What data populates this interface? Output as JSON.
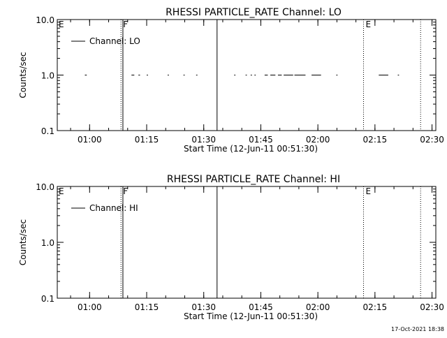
{
  "footer": {
    "timestamp": "17-Oct-2021 18:38"
  },
  "chart_data": [
    {
      "type": "line",
      "title": "RHESSI PARTICLE_RATE Channel: LO",
      "xlabel": "Start Time (12-Jun-11 00:51:30)",
      "ylabel": "Counts/sec",
      "xscale": "time",
      "xlim": [
        "00:51:30",
        "02:31:00"
      ],
      "yscale": "log",
      "ylim": [
        0.1,
        10.0
      ],
      "y_ticks": [
        "0.1",
        "1.0",
        "10.0"
      ],
      "x_ticks": [
        {
          "label": "01:00",
          "value": "01:00"
        },
        {
          "label": "01:15",
          "value": "01:15"
        },
        {
          "label": "01:30",
          "value": "01:30"
        },
        {
          "label": "01:45",
          "value": "01:45"
        },
        {
          "label": "02:00",
          "value": "02:00"
        },
        {
          "label": "02:15",
          "value": "02:15"
        },
        {
          "label": "02:30",
          "value": "02:30"
        }
      ],
      "legend": {
        "position": "top-left",
        "entries": [
          "Channel: LO"
        ]
      },
      "series": [
        {
          "name": "Channel: LO",
          "value": 1.0,
          "segments": [
            [
              "00:58:45",
              "00:59:15"
            ],
            [
              "01:11:00",
              "01:11:45"
            ],
            [
              "01:12:50",
              "01:13:15"
            ],
            [
              "01:15:00",
              "01:15:20"
            ],
            [
              "01:20:30",
              "01:20:50"
            ],
            [
              "01:24:40",
              "01:25:00"
            ],
            [
              "01:28:00",
              "01:28:20"
            ],
            [
              "01:38:00",
              "01:38:20"
            ],
            [
              "01:41:00",
              "01:41:20"
            ],
            [
              "01:42:20",
              "01:42:40"
            ],
            [
              "01:43:20",
              "01:43:40"
            ],
            [
              "01:46:00",
              "01:46:50"
            ],
            [
              "01:47:30",
              "01:48:50"
            ],
            [
              "01:49:30",
              "01:50:30"
            ],
            [
              "01:51:00",
              "01:53:30"
            ],
            [
              "01:53:50",
              "01:56:45"
            ],
            [
              "01:58:20",
              "02:00:50"
            ],
            [
              "02:04:50",
              "02:05:10"
            ],
            [
              "02:16:00",
              "02:18:30"
            ],
            [
              "02:21:00",
              "02:21:20"
            ]
          ]
        }
      ],
      "vlines": [
        {
          "time": "01:08:15",
          "style": "dotted",
          "label": "F"
        },
        {
          "time": "01:08:45",
          "style": "solid",
          "label": ""
        },
        {
          "time": "01:33:30",
          "style": "solid",
          "label": ""
        },
        {
          "time": "02:12:00",
          "style": "dotted",
          "label": "E"
        },
        {
          "time": "02:27:00",
          "style": "dotted",
          "label": ""
        }
      ],
      "edge_label": "E",
      "grid": false
    },
    {
      "type": "line",
      "title": "RHESSI PARTICLE_RATE Channel: HI",
      "xlabel": "Start Time (12-Jun-11 00:51:30)",
      "ylabel": "Counts/sec",
      "xscale": "time",
      "xlim": [
        "00:51:30",
        "02:31:00"
      ],
      "yscale": "log",
      "ylim": [
        0.1,
        10.0
      ],
      "y_ticks": [
        "0.1",
        "1.0",
        "10.0"
      ],
      "x_ticks": [
        {
          "label": "01:00",
          "value": "01:00"
        },
        {
          "label": "01:15",
          "value": "01:15"
        },
        {
          "label": "01:30",
          "value": "01:30"
        },
        {
          "label": "01:45",
          "value": "01:45"
        },
        {
          "label": "02:00",
          "value": "02:00"
        },
        {
          "label": "02:15",
          "value": "02:15"
        },
        {
          "label": "02:30",
          "value": "02:30"
        }
      ],
      "legend": {
        "position": "top-left",
        "entries": [
          "Channel: HI"
        ]
      },
      "series": [
        {
          "name": "Channel: HI",
          "value": 1.0,
          "segments": []
        }
      ],
      "vlines": [
        {
          "time": "01:08:15",
          "style": "dotted",
          "label": "F"
        },
        {
          "time": "01:08:45",
          "style": "solid",
          "label": ""
        },
        {
          "time": "01:33:30",
          "style": "solid",
          "label": ""
        },
        {
          "time": "02:12:00",
          "style": "dotted",
          "label": "E"
        },
        {
          "time": "02:27:00",
          "style": "dotted",
          "label": ""
        }
      ],
      "edge_label": "E",
      "grid": false
    }
  ]
}
